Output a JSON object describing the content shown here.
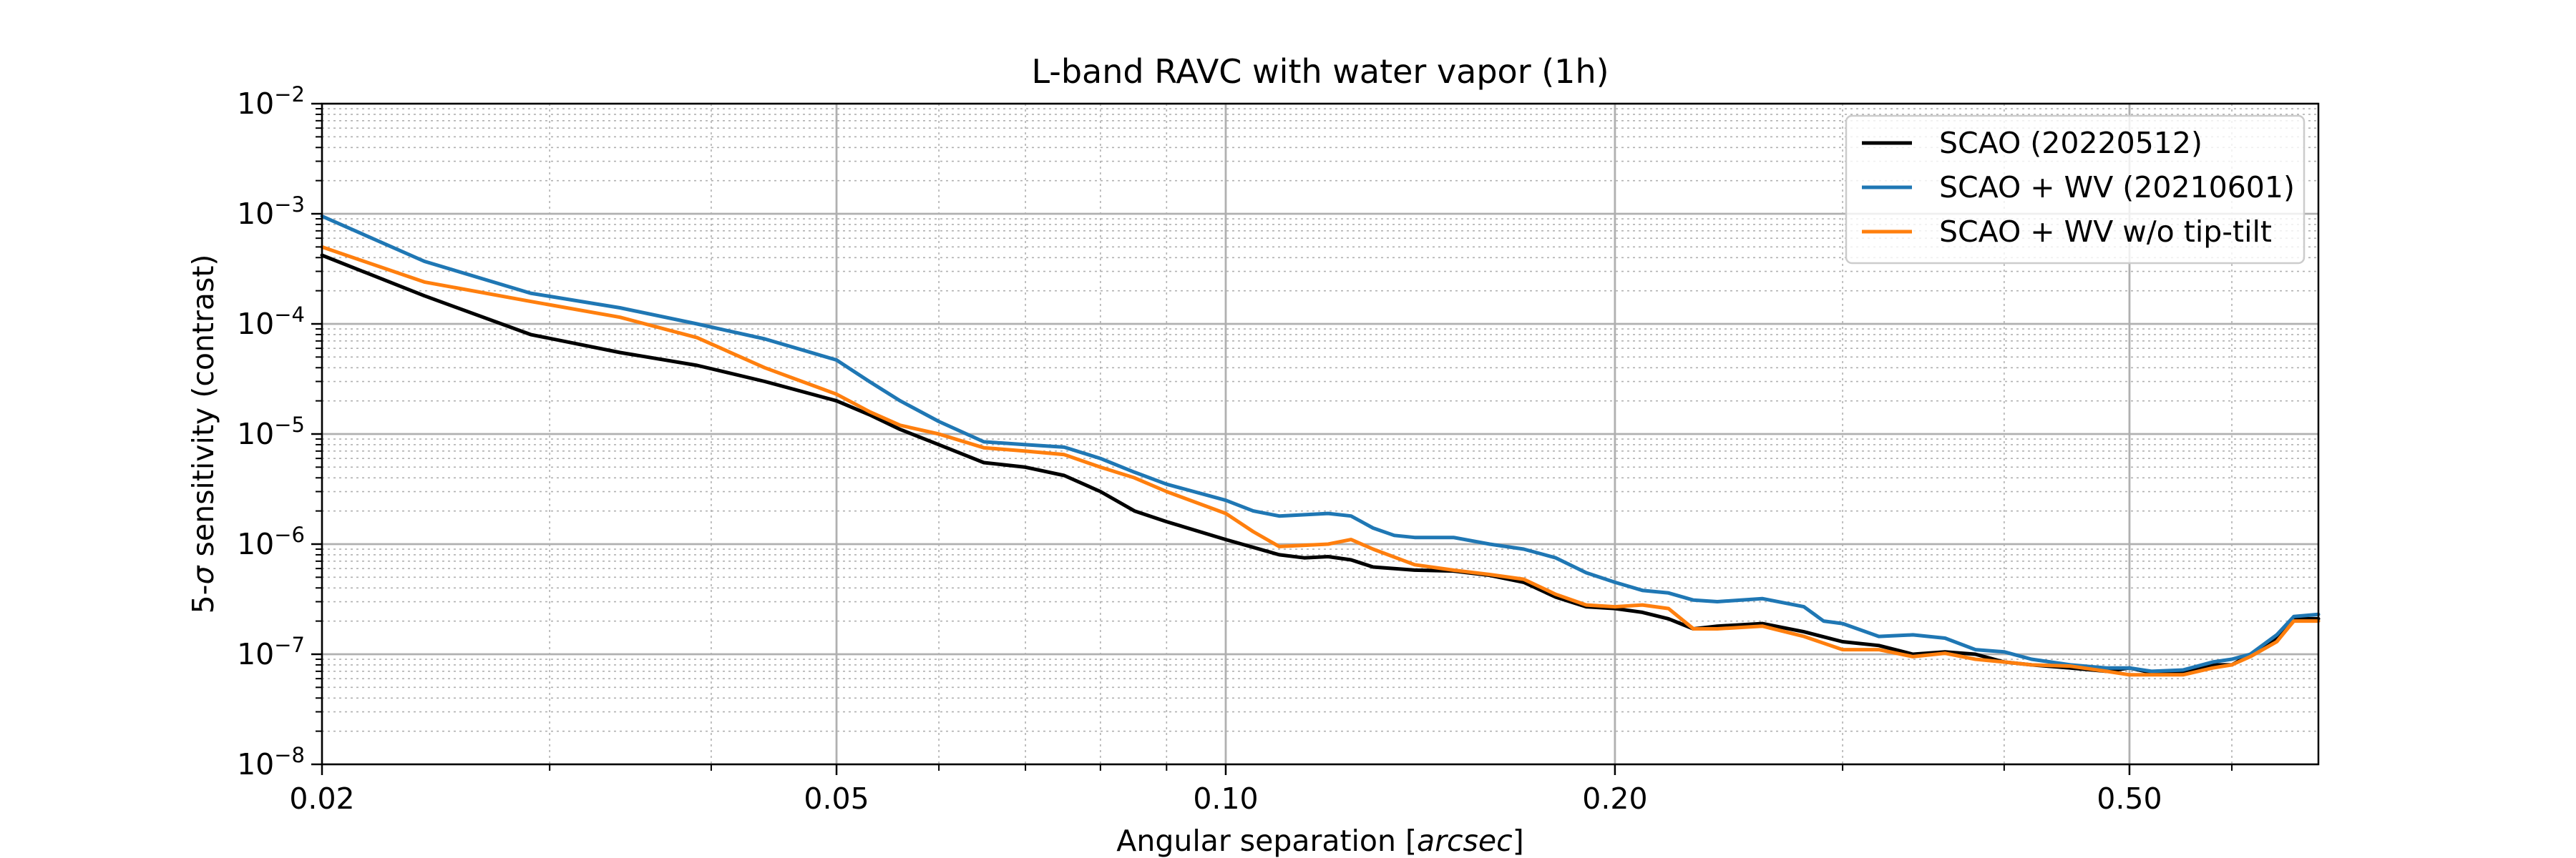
{
  "chart_data": {
    "type": "line",
    "title": "L-band RAVC with water vapor (1h)",
    "xlabel": "Angular separation [",
    "xlabel_italic": "arcsec",
    "xlabel_end": "]",
    "ylabel_pre": "5-",
    "ylabel_sigma": "σ",
    "ylabel_post": " sensitivity (contrast)",
    "x_scale": "log",
    "y_scale": "log",
    "xlim": [
      0.02,
      0.7
    ],
    "ylim": [
      1e-08,
      0.01
    ],
    "grid": true,
    "legend_position": "top-right",
    "x_ticks": [
      {
        "value": 0.02,
        "label": "0.02"
      },
      {
        "value": 0.05,
        "label": "0.05"
      },
      {
        "value": 0.1,
        "label": "0.10"
      },
      {
        "value": 0.2,
        "label": "0.20"
      },
      {
        "value": 0.5,
        "label": "0.50"
      }
    ],
    "y_ticks": [
      {
        "value": 1e-08,
        "base": "10",
        "exp": "−8"
      },
      {
        "value": 1e-07,
        "base": "10",
        "exp": "−7"
      },
      {
        "value": 1e-06,
        "base": "10",
        "exp": "−6"
      },
      {
        "value": 1e-05,
        "base": "10",
        "exp": "−5"
      },
      {
        "value": 0.0001,
        "base": "10",
        "exp": "−4"
      },
      {
        "value": 0.001,
        "base": "10",
        "exp": "−3"
      },
      {
        "value": 0.01,
        "base": "10",
        "exp": "−2"
      }
    ],
    "series": [
      {
        "name": "SCAO (20220512)",
        "color": "#000000",
        "x": [
          0.02,
          0.024,
          0.029,
          0.034,
          0.039,
          0.044,
          0.05,
          0.053,
          0.056,
          0.06,
          0.065,
          0.07,
          0.075,
          0.08,
          0.085,
          0.09,
          0.1,
          0.11,
          0.115,
          0.12,
          0.125,
          0.13,
          0.14,
          0.15,
          0.16,
          0.17,
          0.18,
          0.19,
          0.2,
          0.21,
          0.22,
          0.23,
          0.24,
          0.26,
          0.28,
          0.3,
          0.32,
          0.34,
          0.36,
          0.38,
          0.4,
          0.42,
          0.45,
          0.48,
          0.5,
          0.52,
          0.55,
          0.58,
          0.6,
          0.62,
          0.65,
          0.67,
          0.7
        ],
        "y": [
          0.00042,
          0.00018,
          8e-05,
          5.5e-05,
          4.2e-05,
          3e-05,
          2e-05,
          1.5e-05,
          1.1e-05,
          8e-06,
          5.5e-06,
          5e-06,
          4.2e-06,
          3e-06,
          2e-06,
          1.6e-06,
          1.1e-06,
          8e-07,
          7.5e-07,
          7.7e-07,
          7.2e-07,
          6.2e-07,
          5.8e-07,
          5.7e-07,
          5.2e-07,
          4.5e-07,
          3.3e-07,
          2.7e-07,
          2.6e-07,
          2.4e-07,
          2.1e-07,
          1.7e-07,
          1.8e-07,
          1.9e-07,
          1.6e-07,
          1.3e-07,
          1.2e-07,
          1e-07,
          1.05e-07,
          1e-07,
          8.5e-08,
          8e-08,
          7.5e-08,
          7e-08,
          7.5e-08,
          6.8e-08,
          7e-08,
          8e-08,
          8e-08,
          1e-07,
          1.4e-07,
          2.1e-07,
          2.1e-07
        ]
      },
      {
        "name": "SCAO + WV (20210601)",
        "color": "#1f77b4",
        "x": [
          0.02,
          0.024,
          0.029,
          0.034,
          0.039,
          0.044,
          0.05,
          0.053,
          0.056,
          0.06,
          0.065,
          0.07,
          0.075,
          0.08,
          0.085,
          0.09,
          0.1,
          0.105,
          0.11,
          0.12,
          0.125,
          0.13,
          0.135,
          0.14,
          0.15,
          0.16,
          0.17,
          0.18,
          0.19,
          0.2,
          0.21,
          0.22,
          0.23,
          0.24,
          0.26,
          0.28,
          0.29,
          0.3,
          0.32,
          0.34,
          0.36,
          0.38,
          0.4,
          0.42,
          0.45,
          0.48,
          0.5,
          0.52,
          0.55,
          0.58,
          0.6,
          0.62,
          0.65,
          0.67,
          0.7
        ],
        "y": [
          0.00095,
          0.00037,
          0.00019,
          0.00014,
          0.0001,
          7.3e-05,
          4.7e-05,
          3e-05,
          2e-05,
          1.3e-05,
          8.5e-06,
          8e-06,
          7.6e-06,
          6e-06,
          4.5e-06,
          3.5e-06,
          2.5e-06,
          2e-06,
          1.8e-06,
          1.9e-06,
          1.8e-06,
          1.4e-06,
          1.2e-06,
          1.15e-06,
          1.15e-06,
          1e-06,
          9e-07,
          7.5e-07,
          5.5e-07,
          4.5e-07,
          3.8e-07,
          3.6e-07,
          3.1e-07,
          3e-07,
          3.2e-07,
          2.7e-07,
          2e-07,
          1.9e-07,
          1.45e-07,
          1.5e-07,
          1.4e-07,
          1.1e-07,
          1.05e-07,
          9e-08,
          8e-08,
          7.5e-08,
          7.5e-08,
          7e-08,
          7.2e-08,
          8.5e-08,
          9e-08,
          1e-07,
          1.5e-07,
          2.2e-07,
          2.3e-07
        ]
      },
      {
        "name": "SCAO + WV w/o tip-tilt",
        "color": "#ff7f0e",
        "x": [
          0.02,
          0.024,
          0.029,
          0.034,
          0.039,
          0.044,
          0.05,
          0.053,
          0.056,
          0.06,
          0.065,
          0.07,
          0.075,
          0.08,
          0.085,
          0.09,
          0.1,
          0.105,
          0.11,
          0.12,
          0.125,
          0.13,
          0.14,
          0.15,
          0.16,
          0.17,
          0.18,
          0.19,
          0.2,
          0.21,
          0.22,
          0.23,
          0.24,
          0.26,
          0.28,
          0.3,
          0.32,
          0.34,
          0.36,
          0.38,
          0.4,
          0.42,
          0.45,
          0.48,
          0.5,
          0.52,
          0.55,
          0.58,
          0.6,
          0.62,
          0.65,
          0.67,
          0.7
        ],
        "y": [
          0.0005,
          0.00024,
          0.00016,
          0.000115,
          7.5e-05,
          4e-05,
          2.3e-05,
          1.6e-05,
          1.2e-05,
          1e-05,
          7.5e-06,
          7e-06,
          6.5e-06,
          5e-06,
          4e-06,
          3e-06,
          1.9e-06,
          1.3e-06,
          9.5e-07,
          1e-06,
          1.1e-06,
          9e-07,
          6.5e-07,
          5.8e-07,
          5.3e-07,
          4.8e-07,
          3.5e-07,
          2.8e-07,
          2.7e-07,
          2.8e-07,
          2.6e-07,
          1.7e-07,
          1.7e-07,
          1.8e-07,
          1.45e-07,
          1.1e-07,
          1.1e-07,
          9.5e-08,
          1.02e-07,
          9e-08,
          8.5e-08,
          8e-08,
          7.8e-08,
          7e-08,
          6.5e-08,
          6.5e-08,
          6.5e-08,
          7.5e-08,
          8e-08,
          9.5e-08,
          1.3e-07,
          2e-07,
          2e-07
        ]
      }
    ]
  }
}
